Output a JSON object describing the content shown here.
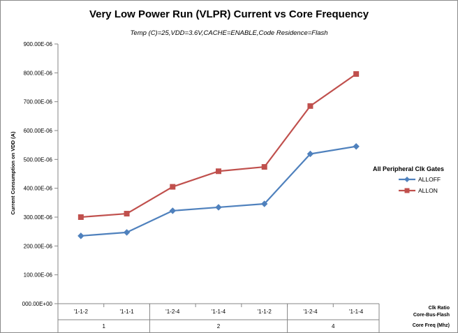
{
  "chart_data": {
    "type": "line",
    "title": "Very Low Power Run (VLPR) Current vs Core Frequency",
    "subtitle": "Temp (C)=25,VDD=3.6V,CACHE=ENABLE,Code Residence=Flash",
    "ylabel": "Current Consumption on VDD (A)",
    "ylim": [
      0,
      0.0009
    ],
    "yticks": [
      "000.00E+00",
      "100.00E-06",
      "200.00E-06",
      "300.00E-06",
      "400.00E-06",
      "500.00E-06",
      "600.00E-06",
      "700.00E-06",
      "800.00E-06",
      "900.00E-06"
    ],
    "categories": [
      "'1-1-2",
      "'1-1-1",
      "'1-2-4",
      "'1-1-4",
      "'1-1-2",
      "'1-2-4",
      "'1-1-4"
    ],
    "groups": [
      {
        "label": "1",
        "count": 2
      },
      {
        "label": "2",
        "count": 3
      },
      {
        "label": "4",
        "count": 2
      }
    ],
    "x_row_labels": {
      "row1_line1": "Clk Ratio",
      "row1_line2": "Core-Bus-Flash",
      "row2": "Core Freq (Mhz)"
    },
    "legend_title": "All Peripheral Clk Gates",
    "legend_position": "right",
    "grid": {
      "horizontal": false,
      "vertical": false
    },
    "series": [
      {
        "name": "ALLOFF",
        "color": "#4f81bd",
        "marker": "diamond",
        "values": [
          0.000235,
          0.000247,
          0.000322,
          0.000334,
          0.000346,
          0.000519,
          0.000545
        ]
      },
      {
        "name": "ALLON",
        "color": "#c0504d",
        "marker": "square",
        "values": [
          0.0003,
          0.000312,
          0.000405,
          0.000459,
          0.000474,
          0.000685,
          0.000796
        ]
      }
    ]
  }
}
